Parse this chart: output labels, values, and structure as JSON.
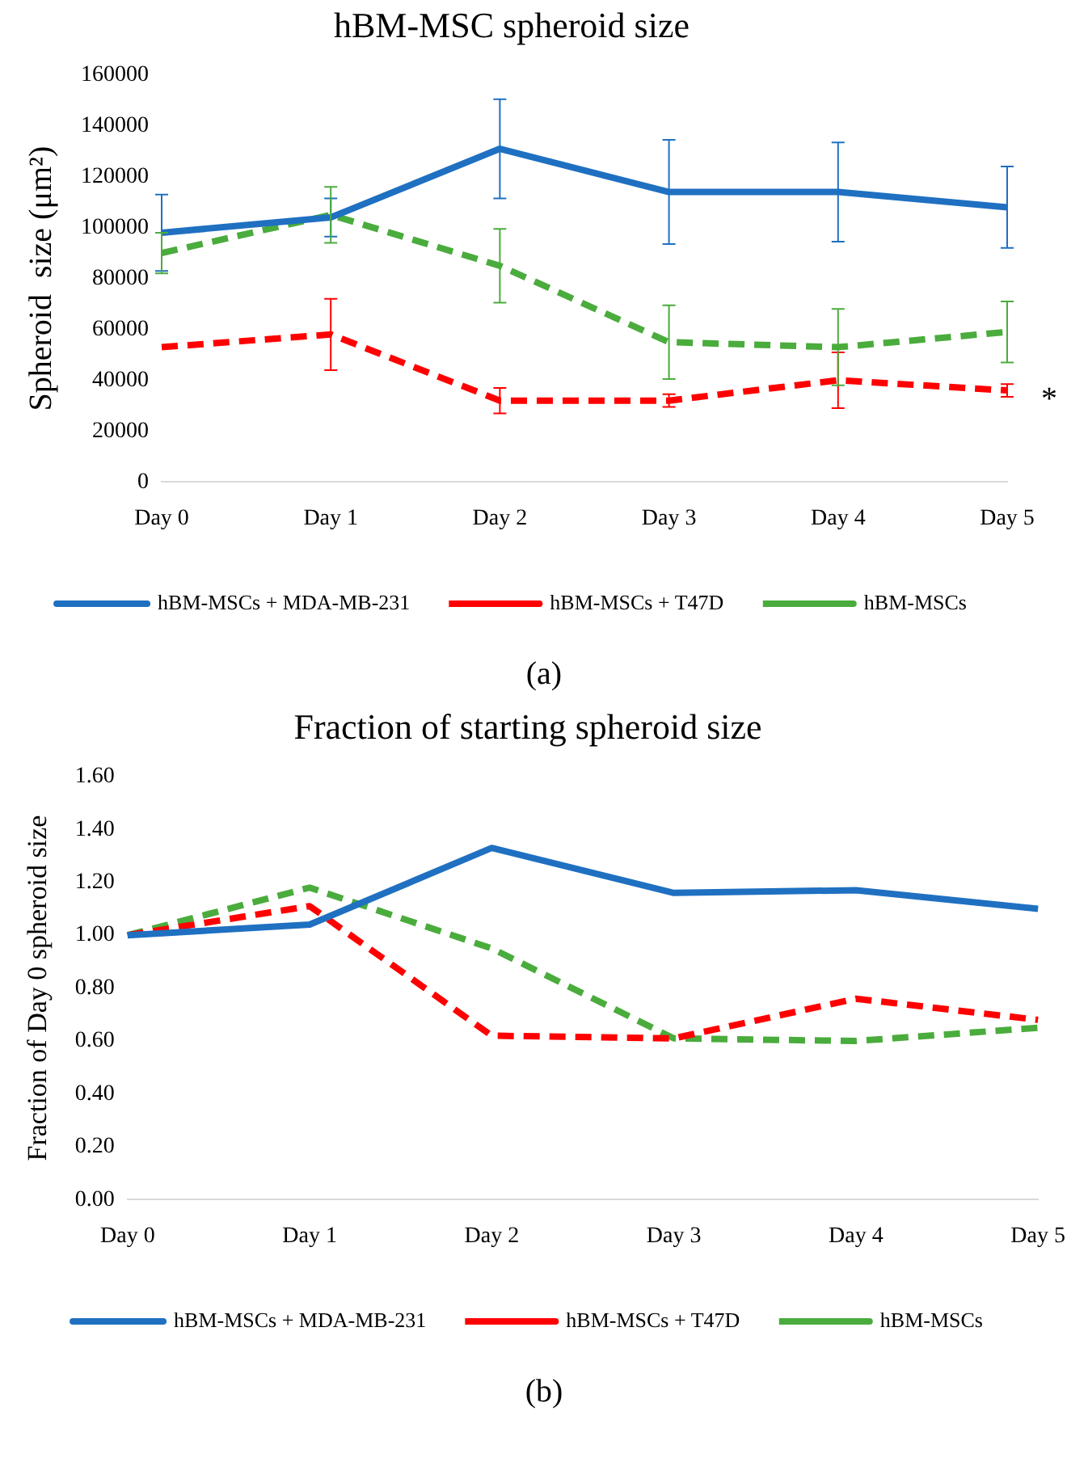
{
  "chart_data": [
    {
      "type": "line",
      "title": "hBM-MSC spheroid size",
      "ylabel": "Spheroid  size (μm²)",
      "categories": [
        "Day 0",
        "Day 1",
        "Day 2",
        "Day 3",
        "Day 4",
        "Day 5"
      ],
      "series": [
        {
          "name": "hBM-MSCs + MDA-MB-231",
          "color": "#1f70c1",
          "line_style": "solid",
          "values": [
            98000,
            104000,
            131000,
            114000,
            114000,
            108000
          ],
          "errors": [
            15000,
            7500,
            19500,
            20500,
            19500,
            16000
          ]
        },
        {
          "name": "hBM-MSCs + T47D",
          "color": "#ff0000",
          "line_style": "dashed",
          "values": [
            53000,
            58000,
            32000,
            32000,
            40000,
            36000
          ],
          "errors": [
            null,
            14000,
            5000,
            2500,
            11000,
            2500
          ]
        },
        {
          "name": "hBM-MSCs",
          "color": "#4aac3c",
          "line_style": "dashed",
          "values": [
            90000,
            105000,
            85000,
            55000,
            53000,
            59000
          ],
          "errors": [
            8000,
            11000,
            14500,
            14500,
            15000,
            12000
          ]
        }
      ],
      "ylim": [
        0,
        160000
      ],
      "yticks": [
        0,
        20000,
        40000,
        60000,
        80000,
        100000,
        120000,
        140000,
        160000
      ],
      "grid": false,
      "legend": "bottom",
      "marker": "none",
      "annotations": [
        {
          "text": "*",
          "x": "Day 5",
          "y": 32000
        },
        "(a)"
      ]
    },
    {
      "type": "line",
      "title": "Fraction of starting spheroid size",
      "ylabel": "Fraction of Day 0 spheroid size",
      "categories": [
        "Day 0",
        "Day 1",
        "Day 2",
        "Day 3",
        "Day 4",
        "Day 5"
      ],
      "series": [
        {
          "name": "hBM-MSCs + MDA-MB-231",
          "color": "#1f70c1",
          "line_style": "solid",
          "values": [
            1.0,
            1.04,
            1.33,
            1.16,
            1.17,
            1.1
          ]
        },
        {
          "name": "hBM-MSCs + T47D",
          "color": "#ff0000",
          "line_style": "dashed",
          "values": [
            1.0,
            1.11,
            0.62,
            0.61,
            0.76,
            0.68
          ]
        },
        {
          "name": "hBM-MSCs",
          "color": "#4aac3c",
          "line_style": "dashed",
          "values": [
            1.0,
            1.18,
            0.95,
            0.61,
            0.6,
            0.65
          ]
        }
      ],
      "ylim": [
        0,
        1.6
      ],
      "yticks": [
        {
          "value": 0,
          "label": "0.00"
        },
        {
          "value": 0.2,
          "label": "0.20"
        },
        {
          "value": 0.4,
          "label": "0.40"
        },
        {
          "value": 0.6,
          "label": "0.60"
        },
        {
          "value": 0.8,
          "label": "0.80"
        },
        {
          "value": 1,
          "label": "1.00"
        },
        {
          "value": 1.2,
          "label": "1.20"
        },
        {
          "value": 1.4,
          "label": "1.40"
        },
        {
          "value": 1.6,
          "label": "1.60"
        }
      ],
      "grid": false,
      "legend": "bottom",
      "marker": "none",
      "annotations": [
        "(b)"
      ]
    }
  ]
}
